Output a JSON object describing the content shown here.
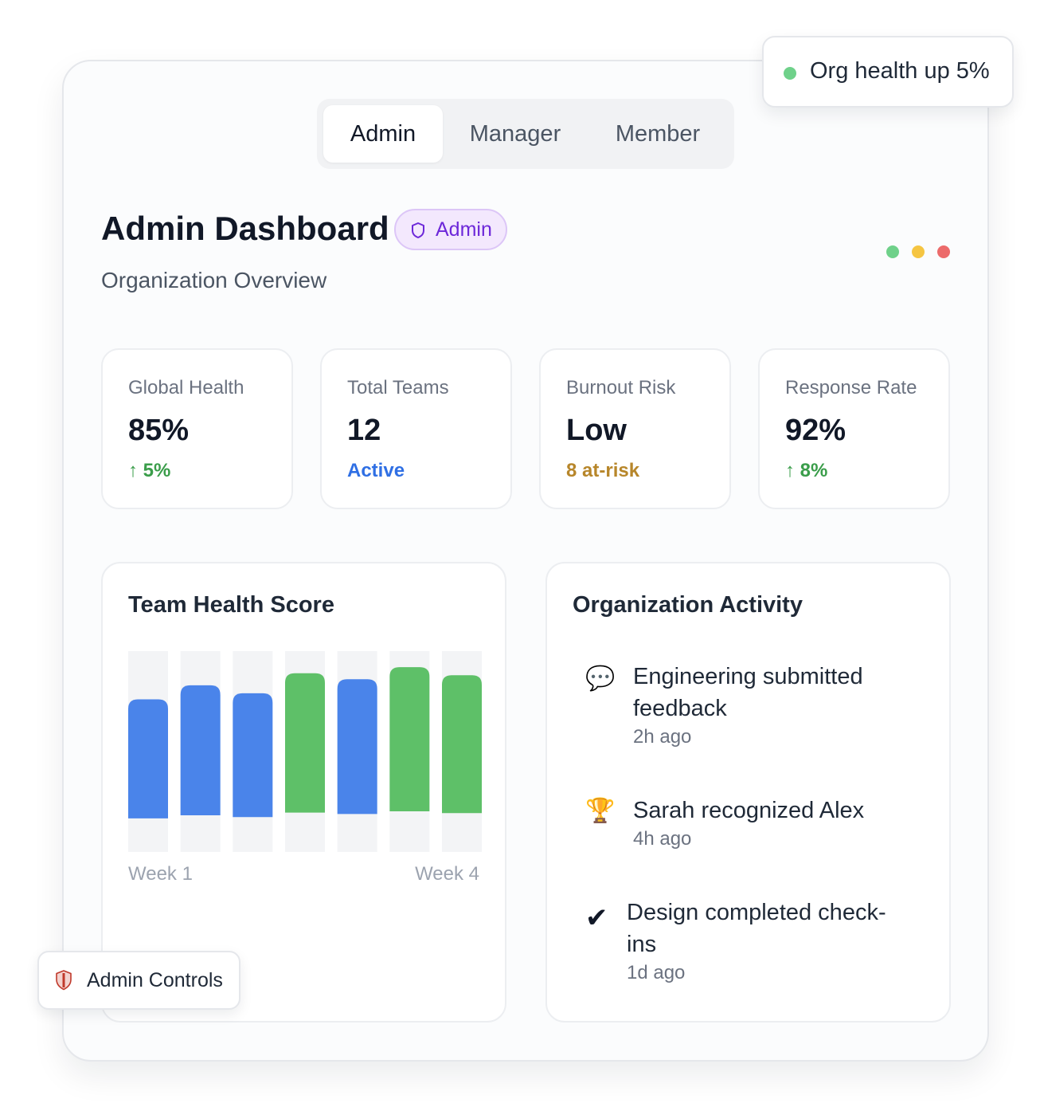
{
  "tabs": [
    {
      "label": "Admin",
      "active": true
    },
    {
      "label": "Manager",
      "active": false
    },
    {
      "label": "Member",
      "active": false
    }
  ],
  "toast": {
    "text": "Org health up 5%",
    "dot_color": "#6fd18a"
  },
  "header": {
    "title": "Admin Dashboard",
    "badge": "Admin",
    "badge_icon": "shield-icon",
    "subtitle": "Organization Overview"
  },
  "window_dots": [
    "#6fd18a",
    "#f5c542",
    "#ec6b6b"
  ],
  "stats": [
    {
      "label": "Global Health",
      "value": "85%",
      "sub": "↑ 5%",
      "sub_color": "#3a9d4a"
    },
    {
      "label": "Total Teams",
      "value": "12",
      "sub": "Active",
      "sub_color": "#2f6fe4"
    },
    {
      "label": "Burnout Risk",
      "value": "Low",
      "sub": "8 at-risk",
      "sub_color": "#b7862a"
    },
    {
      "label": "Response Rate",
      "value": "92%",
      "sub": "↑ 8%",
      "sub_color": "#3a9d4a"
    }
  ],
  "health_panel": {
    "title": "Team Health Score",
    "x_start_label": "Week 1",
    "x_end_label": "Week 4"
  },
  "chart_data": {
    "type": "bar",
    "values": [
      76,
      83,
      79,
      89,
      86,
      92,
      88
    ],
    "colors": [
      "#4a84ea",
      "#4a84ea",
      "#4a84ea",
      "#5ec068",
      "#4a84ea",
      "#5ec068",
      "#5ec068"
    ],
    "track_color": "#f3f4f6",
    "ylim": [
      0,
      100
    ],
    "xlabel_start": "Week 1",
    "xlabel_end": "Week 4"
  },
  "activity_panel": {
    "title": "Organization Activity",
    "items": [
      {
        "icon": "speech-bubble-icon",
        "glyph": "💬",
        "text": "Engineering submitted feedback",
        "time": "2h ago"
      },
      {
        "icon": "trophy-icon",
        "glyph": "🏆",
        "text": "Sarah recognized Alex",
        "time": "4h ago"
      },
      {
        "icon": "checkmark-icon",
        "glyph": "✔",
        "text": "Design completed check-ins",
        "time": "1d ago"
      }
    ]
  },
  "admin_controls": {
    "label": "Admin Controls",
    "icon": "shield-icon"
  }
}
